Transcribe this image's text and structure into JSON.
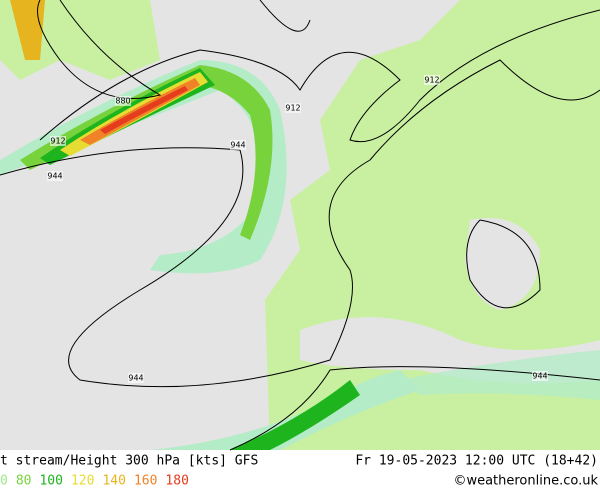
{
  "map": {
    "contour_labels": [
      "880",
      "912",
      "944",
      "912",
      "912",
      "944",
      "944",
      "944"
    ],
    "footer": {
      "title": "t stream/Height 300 hPa [kts] GFS",
      "datetime": "Fr 19-05-2023 12:00 UTC (18+42)",
      "credit": "©weatheronline.co.uk"
    },
    "legend": [
      {
        "label": "0",
        "color": "#a0e68c"
      },
      {
        "label": "80",
        "color": "#78d23c"
      },
      {
        "label": "100",
        "color": "#1eb41e"
      },
      {
        "label": "120",
        "color": "#e6dc32"
      },
      {
        "label": "140",
        "color": "#e6b41e"
      },
      {
        "label": "160",
        "color": "#f08228"
      },
      {
        "label": "180",
        "color": "#e63c1e"
      }
    ]
  }
}
